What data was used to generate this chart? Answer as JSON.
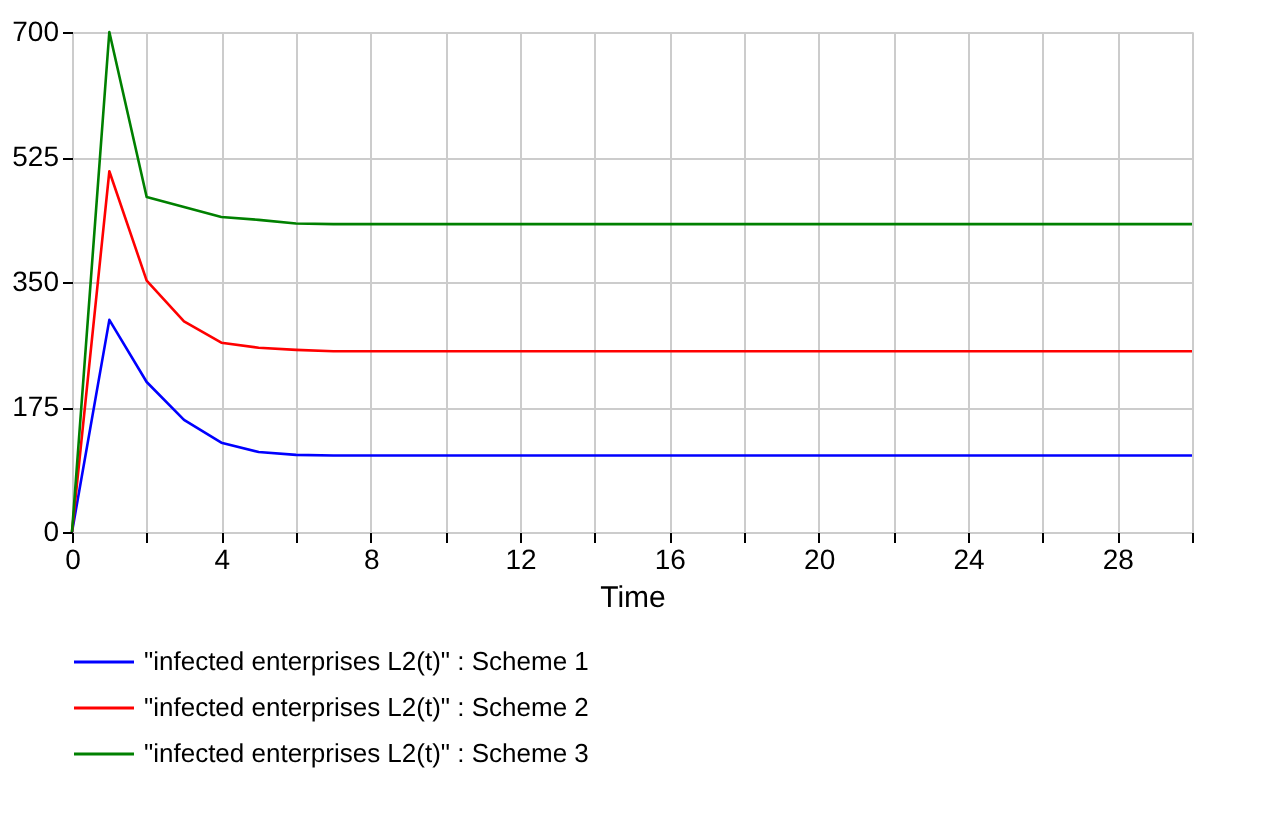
{
  "chart_data": {
    "type": "line",
    "xlabel": "Time",
    "x": [
      0,
      1,
      2,
      3,
      4,
      5,
      6,
      7,
      8,
      9,
      10,
      11,
      12,
      13,
      14,
      15,
      16,
      17,
      18,
      19,
      20,
      21,
      22,
      23,
      24,
      25,
      26,
      27,
      28,
      29,
      30
    ],
    "series": [
      {
        "name": "\"infected enterprises L2(t)\" : Scheme 1",
        "color": "#0000ff",
        "values": [
          0,
          297,
          210,
          157,
          125,
          112,
          108,
          107,
          107,
          107,
          107,
          107,
          107,
          107,
          107,
          107,
          107,
          107,
          107,
          107,
          107,
          107,
          107,
          107,
          107,
          107,
          107,
          107,
          107,
          107,
          107
        ]
      },
      {
        "name": "\"infected enterprises L2(t)\" : Scheme 2",
        "color": "#ff0000",
        "values": [
          0,
          505,
          352,
          295,
          265,
          258,
          255,
          253,
          253,
          253,
          253,
          253,
          253,
          253,
          253,
          253,
          253,
          253,
          253,
          253,
          253,
          253,
          253,
          253,
          253,
          253,
          253,
          253,
          253,
          253,
          253
        ]
      },
      {
        "name": "\"infected enterprises L2(t)\" : Scheme 3",
        "color": "#008000",
        "values": [
          0,
          700,
          469,
          455,
          441,
          437,
          432,
          431,
          431,
          431,
          431,
          431,
          431,
          431,
          431,
          431,
          431,
          431,
          431,
          431,
          431,
          431,
          431,
          431,
          431,
          431,
          431,
          431,
          431,
          431,
          431
        ]
      }
    ],
    "xlim": [
      0,
      30
    ],
    "xticks": [
      0,
      {
        "value": 2,
        "label": null
      },
      4,
      {
        "value": 6,
        "label": null
      },
      8,
      {
        "value": 10,
        "label": null
      },
      12,
      {
        "value": 14,
        "label": null
      },
      16,
      {
        "value": 18,
        "label": null
      },
      20,
      {
        "value": 22,
        "label": null
      },
      24,
      {
        "value": 26,
        "label": null
      },
      28,
      {
        "value": 30,
        "label": null
      }
    ],
    "ylim": [
      0,
      700
    ],
    "yticks": [
      0,
      175,
      350,
      525,
      700
    ],
    "grid": true,
    "legend": "bottom",
    "line_style": "solid",
    "marker": "none"
  }
}
